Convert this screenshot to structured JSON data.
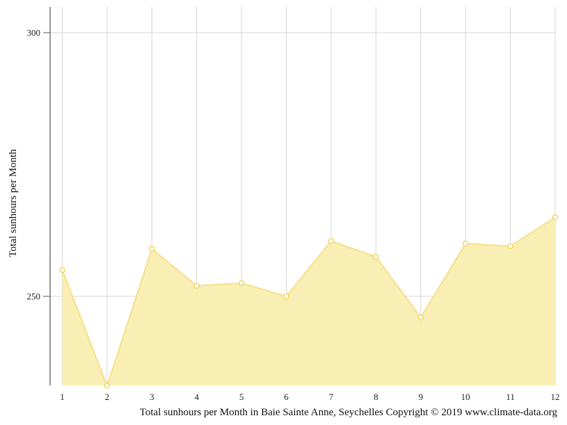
{
  "caption": "Total sunhours per Month in Baie Sainte Anne, Seychelles Copyright © 2019 www.climate-data.org",
  "chart_data": {
    "type": "area",
    "title": "",
    "xlabel": "",
    "ylabel": "Total sunhours per Month",
    "categories": [
      "1",
      "2",
      "3",
      "4",
      "5",
      "6",
      "7",
      "8",
      "9",
      "10",
      "11",
      "12"
    ],
    "series": [
      {
        "values": [
          255,
          233,
          259,
          252,
          252.5,
          250,
          260.5,
          257.5,
          246,
          260,
          259.5,
          265
        ]
      }
    ],
    "ylim": [
      233,
      305
    ],
    "y_ticks": [
      250,
      300
    ],
    "grid": true,
    "colors": {
      "fill": "#f9eeb0",
      "line": "#f6e08a",
      "marker": "#f0d24a"
    }
  }
}
